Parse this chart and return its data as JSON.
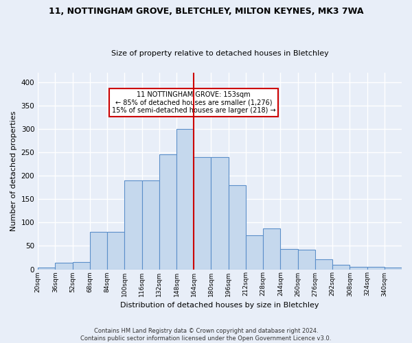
{
  "title": "11, NOTTINGHAM GROVE, BLETCHLEY, MILTON KEYNES, MK3 7WA",
  "subtitle": "Size of property relative to detached houses in Bletchley",
  "xlabel": "Distribution of detached houses by size in Bletchley",
  "ylabel": "Number of detached properties",
  "bin_labels": [
    "20sqm",
    "36sqm",
    "52sqm",
    "68sqm",
    "84sqm",
    "100sqm",
    "116sqm",
    "132sqm",
    "148sqm",
    "164sqm",
    "180sqm",
    "196sqm",
    "212sqm",
    "228sqm",
    "244sqm",
    "260sqm",
    "276sqm",
    "292sqm",
    "308sqm",
    "324sqm",
    "340sqm"
  ],
  "bar_values": [
    3,
    14,
    15,
    80,
    80,
    190,
    190,
    245,
    300,
    240,
    240,
    180,
    72,
    87,
    43,
    42,
    22,
    10,
    5,
    5,
    3
  ],
  "bar_color": "#c5d8ed",
  "bar_edge_color": "#5b8fc9",
  "vline_x": 9,
  "vline_color": "#cc0000",
  "annotation_text": "11 NOTTINGHAM GROVE: 153sqm\n← 85% of detached houses are smaller (1,276)\n15% of semi-detached houses are larger (218) →",
  "annotation_box_color": "white",
  "annotation_box_edge": "#cc0000",
  "footer": "Contains HM Land Registry data © Crown copyright and database right 2024.\nContains public sector information licensed under the Open Government Licence v3.0.",
  "ylim": [
    0,
    420
  ],
  "background_color": "#e8eef8",
  "grid_color": "white",
  "title_fontsize": 9,
  "subtitle_fontsize": 8,
  "xlabel_fontsize": 8,
  "ylabel_fontsize": 8
}
